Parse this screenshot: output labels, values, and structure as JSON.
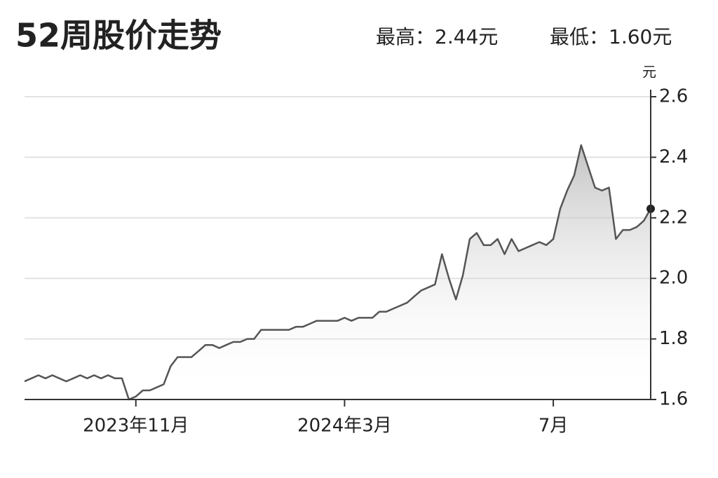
{
  "chart_data": {
    "type": "line",
    "title": "52周股价走势",
    "high_label": "最高：2.44元",
    "low_label": "最低：1.60元",
    "y_unit": "元",
    "color": "#555555",
    "grid": true,
    "categories": [
      null,
      null,
      null,
      null,
      null,
      null,
      null,
      null,
      null,
      null,
      null,
      null,
      null,
      null,
      null,
      null,
      "2023年11月",
      null,
      null,
      null,
      null,
      null,
      null,
      null,
      null,
      null,
      null,
      null,
      null,
      null,
      null,
      null,
      null,
      null,
      null,
      null,
      null,
      null,
      null,
      null,
      null,
      null,
      null,
      null,
      null,
      null,
      "2024年3月",
      null,
      null,
      null,
      null,
      null,
      null,
      null,
      null,
      null,
      null,
      null,
      null,
      null,
      null,
      null,
      null,
      null,
      null,
      null,
      null,
      null,
      null,
      null,
      null,
      null,
      null,
      null,
      null,
      null,
      "7月",
      null,
      null,
      null,
      null,
      null,
      null,
      null,
      null,
      null,
      null,
      null,
      null,
      null,
      null
    ],
    "values": [
      1.66,
      1.67,
      1.68,
      1.67,
      1.68,
      1.67,
      1.66,
      1.67,
      1.68,
      1.67,
      1.68,
      1.67,
      1.68,
      1.67,
      1.67,
      1.6,
      1.61,
      1.63,
      1.63,
      1.64,
      1.65,
      1.71,
      1.74,
      1.74,
      1.74,
      1.76,
      1.78,
      1.78,
      1.77,
      1.78,
      1.79,
      1.79,
      1.8,
      1.8,
      1.83,
      1.83,
      1.83,
      1.83,
      1.83,
      1.84,
      1.84,
      1.85,
      1.86,
      1.86,
      1.86,
      1.86,
      1.87,
      1.86,
      1.87,
      1.87,
      1.87,
      1.89,
      1.89,
      1.9,
      1.91,
      1.92,
      1.94,
      1.96,
      1.97,
      1.98,
      2.08,
      2.0,
      1.93,
      2.01,
      2.13,
      2.15,
      2.11,
      2.11,
      2.13,
      2.08,
      2.13,
      2.09,
      2.1,
      2.11,
      2.12,
      2.11,
      2.13,
      2.23,
      2.29,
      2.34,
      2.44,
      2.37,
      2.3,
      2.29,
      2.3,
      2.13,
      2.16,
      2.16,
      2.17,
      2.19,
      2.23
    ],
    "ylim": [
      1.6,
      2.6
    ],
    "yticks": [
      1.6,
      1.8,
      {
        "value": 2,
        "label": "2.0"
      },
      2.2,
      2.4,
      2.6
    ]
  }
}
